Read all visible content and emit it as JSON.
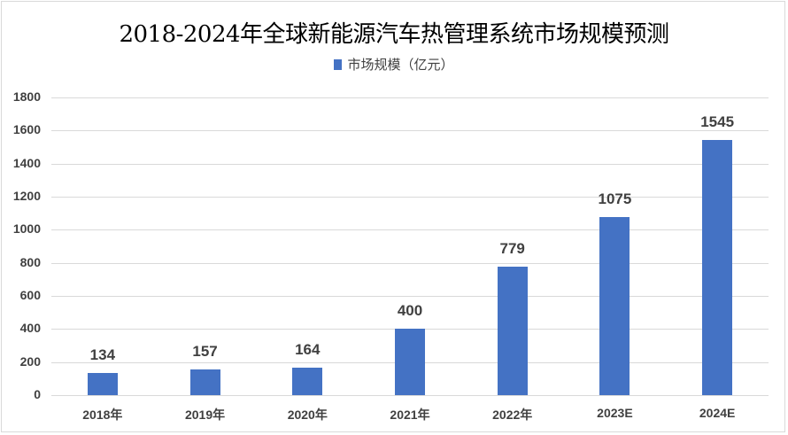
{
  "chart_data": {
    "type": "bar",
    "title": "2018-2024年全球新能源汽车热管理系统市场规模预测",
    "categories": [
      "2018年",
      "2019年",
      "2020年",
      "2021年",
      "2022年",
      "2023E",
      "2024E"
    ],
    "series": [
      {
        "name": "市场规模（亿元）",
        "values": [
          134,
          157,
          164,
          400,
          779,
          1075,
          1545
        ],
        "color": "#4472C4"
      }
    ],
    "xlabel": "",
    "ylabel": "",
    "ylim": [
      0,
      1800
    ],
    "yticks": [
      0,
      200,
      400,
      600,
      800,
      1000,
      1200,
      1400,
      1600,
      1800
    ],
    "grid": true,
    "legend_position": "top",
    "data_labels": true
  },
  "header": {
    "title": "2018-2024年全球新能源汽车热管理系统市场规模预测"
  },
  "legend": {
    "label": "市场规模（亿元）",
    "color": "#4472C4"
  }
}
